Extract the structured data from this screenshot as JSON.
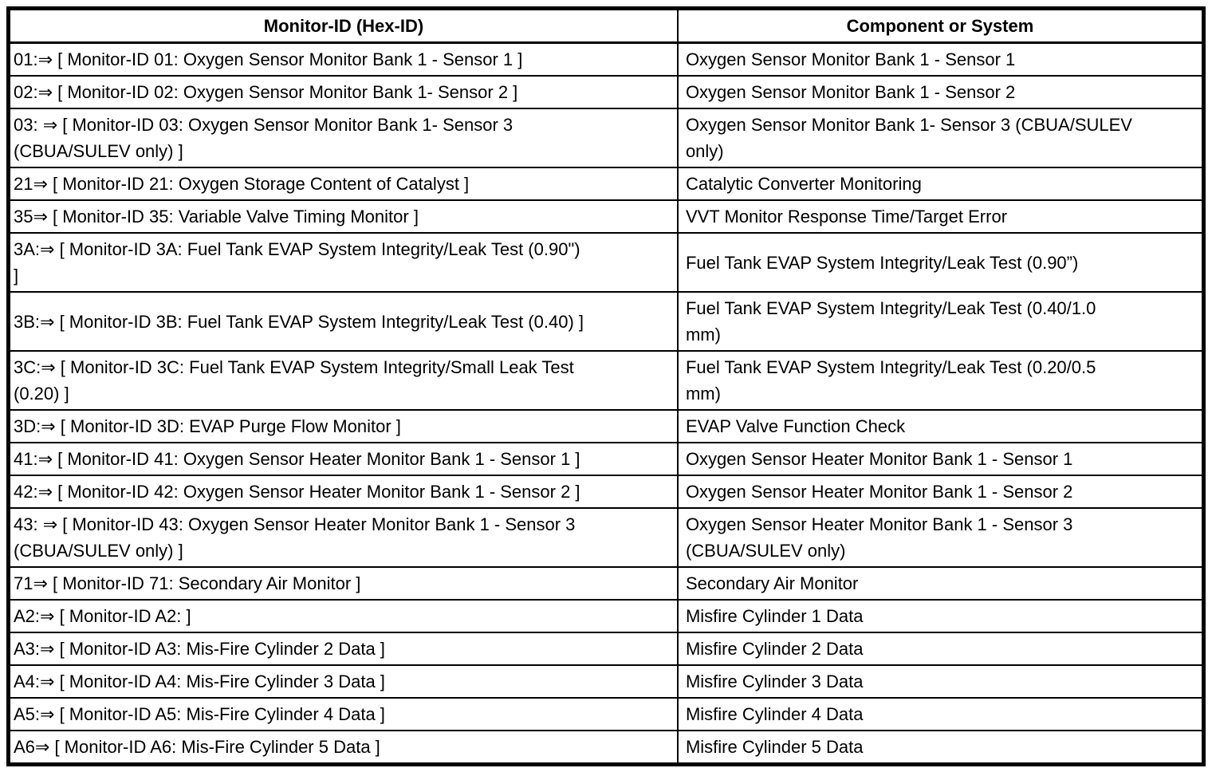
{
  "table": {
    "headers": [
      "Monitor-ID (Hex-ID)",
      "Component or System"
    ],
    "rows": [
      {
        "monitor_id": "01:⇒ [ Monitor-ID 01: Oxygen Sensor Monitor Bank 1 - Sensor 1 ]",
        "component": "Oxygen Sensor Monitor Bank 1 - Sensor 1"
      },
      {
        "monitor_id": "02:⇒ [ Monitor-ID 02: Oxygen Sensor Monitor Bank 1- Sensor 2 ]",
        "component": "Oxygen Sensor Monitor Bank 1 - Sensor 2"
      },
      {
        "monitor_id": "03: ⇒ [ Monitor-ID 03: Oxygen Sensor Monitor Bank 1- Sensor 3\n(CBUA/SULEV only) ]",
        "component": "Oxygen Sensor Monitor Bank 1- Sensor 3 (CBUA/SULEV\nonly)"
      },
      {
        "monitor_id": "21⇒ [ Monitor-ID 21: Oxygen Storage Content of Catalyst ]",
        "component": "Catalytic Converter Monitoring"
      },
      {
        "monitor_id": "35⇒ [ Monitor-ID 35: Variable Valve Timing Monitor ]",
        "component": "VVT Monitor Response Time/Target Error"
      },
      {
        "monitor_id": "3A:⇒ [ Monitor-ID 3A: Fuel Tank EVAP System Integrity/Leak Test (0.90\")\n]",
        "component": "Fuel Tank EVAP System Integrity/Leak Test (0.90”)"
      },
      {
        "monitor_id": "3B:⇒ [ Monitor-ID 3B: Fuel Tank EVAP System Integrity/Leak Test (0.40) ]",
        "component": "Fuel Tank EVAP System Integrity/Leak Test (0.40/1.0\nmm)"
      },
      {
        "monitor_id": "3C:⇒ [ Monitor-ID 3C: Fuel Tank EVAP System Integrity/Small Leak Test\n(0.20) ]",
        "component": "Fuel Tank EVAP System Integrity/Leak Test (0.20/0.5\nmm)"
      },
      {
        "monitor_id": "3D:⇒ [ Monitor-ID 3D: EVAP Purge Flow Monitor ]",
        "component": "EVAP Valve Function Check"
      },
      {
        "monitor_id": "41:⇒ [ Monitor-ID 41: Oxygen Sensor Heater Monitor Bank 1 - Sensor 1 ]",
        "component": "Oxygen Sensor Heater Monitor Bank 1 - Sensor 1"
      },
      {
        "monitor_id": "42:⇒ [ Monitor-ID 42: Oxygen Sensor Heater Monitor Bank 1 - Sensor 2 ]",
        "component": "Oxygen Sensor Heater Monitor Bank 1 - Sensor 2"
      },
      {
        "monitor_id": "43: ⇒ [ Monitor-ID 43: Oxygen Sensor Heater Monitor Bank 1 - Sensor 3\n(CBUA/SULEV only) ]",
        "component": "Oxygen Sensor Heater Monitor Bank 1 - Sensor 3\n(CBUA/SULEV only)"
      },
      {
        "monitor_id": "71⇒ [ Monitor-ID 71: Secondary Air Monitor ]",
        "component": "Secondary Air Monitor"
      },
      {
        "monitor_id": "A2:⇒ [ Monitor-ID A2: ]",
        "component": "Misfire Cylinder 1 Data"
      },
      {
        "monitor_id": "A3:⇒ [ Monitor-ID A3: Mis-Fire Cylinder 2 Data ]",
        "component": "Misfire Cylinder 2 Data"
      },
      {
        "monitor_id": "A4:⇒ [ Monitor-ID A4: Mis-Fire Cylinder 3 Data ]",
        "component": "Misfire Cylinder 3 Data"
      },
      {
        "monitor_id": "A5:⇒ [ Monitor-ID A5: Mis-Fire Cylinder 4 Data ]",
        "component": "Misfire Cylinder 4 Data"
      },
      {
        "monitor_id": "A6⇒ [ Monitor-ID A6: Mis-Fire Cylinder 5 Data ]",
        "component": "Misfire Cylinder 5 Data"
      }
    ],
    "colors": {
      "border": "#000000",
      "text": "#000000",
      "background": "#ffffff"
    }
  }
}
